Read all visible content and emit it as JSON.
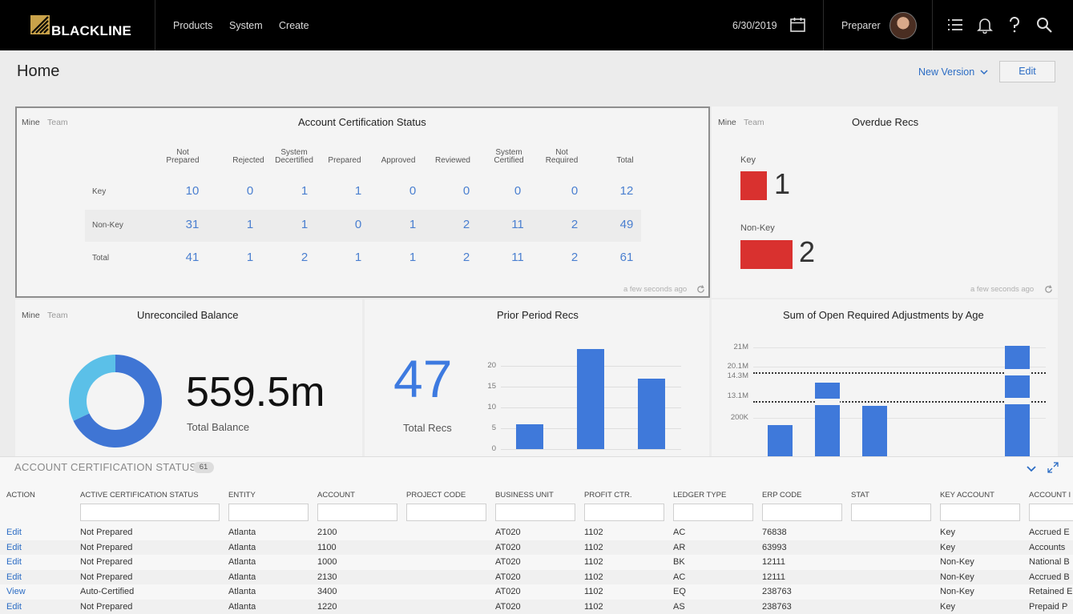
{
  "topbar": {
    "logo_text": "BLACKLINE",
    "nav": [
      "Products",
      "System",
      "Create"
    ],
    "date": "6/30/2019",
    "user_role": "Preparer"
  },
  "page": {
    "title": "Home",
    "new_version_label": "New Version",
    "edit_label": "Edit"
  },
  "toggle": {
    "mine": "Mine",
    "team": "Team"
  },
  "acs_card": {
    "title": "Account Certification Status",
    "columns": [
      [
        "Not",
        "Prepared"
      ],
      [
        "",
        "Rejected"
      ],
      [
        "System",
        "Decertified"
      ],
      [
        "",
        "Prepared"
      ],
      [
        "",
        "Approved"
      ],
      [
        "",
        "Reviewed"
      ],
      [
        "System",
        "Certified"
      ],
      [
        "Not",
        "Required"
      ],
      [
        "",
        "Total"
      ]
    ],
    "rows": [
      {
        "label": "Key",
        "values": [
          "10",
          "0",
          "1",
          "1",
          "0",
          "0",
          "0",
          "0",
          "12"
        ]
      },
      {
        "label": "Non-Key",
        "values": [
          "31",
          "1",
          "1",
          "0",
          "1",
          "2",
          "11",
          "2",
          "49"
        ]
      },
      {
        "label": "Total",
        "values": [
          "41",
          "1",
          "2",
          "1",
          "1",
          "2",
          "11",
          "2",
          "61"
        ]
      }
    ],
    "timestamp": "a few seconds ago"
  },
  "overdue_card": {
    "title": "Overdue Recs",
    "items": [
      {
        "label": "Key",
        "value": "1"
      },
      {
        "label": "Non-Key",
        "value": "2"
      }
    ],
    "timestamp": "a few seconds ago"
  },
  "unreconciled_card": {
    "title": "Unreconciled Balance",
    "value": "559.5m",
    "label": "Total Balance",
    "donut_fraction_dark": 0.68,
    "colors": {
      "dark": "#3f75d4",
      "light": "#5bc0e8"
    }
  },
  "prior_card": {
    "title": "Prior Period Recs",
    "value": "47",
    "label": "Total Recs"
  },
  "adjust_card": {
    "title": "Sum of Open Required Adjustments by Age",
    "y_ticks": [
      "21M",
      "20.1M",
      "14.3M",
      "13.1M",
      "200K"
    ]
  },
  "chart_data": [
    {
      "type": "bar",
      "title": "Prior Period Recs",
      "yticks": [
        0,
        5,
        10,
        15,
        20
      ],
      "ylim": [
        0,
        25
      ],
      "values": [
        6,
        24,
        17
      ]
    },
    {
      "type": "bar",
      "title": "Sum of Open Required Adjustments by Age",
      "values_visible_fraction": [
        0.28,
        0.67,
        0.46,
        1.0
      ],
      "reference_lines": [
        "14.3M",
        "13.1M"
      ]
    }
  ],
  "panel": {
    "title": "ACCOUNT CERTIFICATION STATUS",
    "count": "61",
    "headers": [
      "ACTION",
      "ACTIVE CERTIFICATION STATUS",
      "ENTITY",
      "ACCOUNT",
      "PROJECT CODE",
      "BUSINESS UNIT",
      "PROFIT CTR.",
      "LEDGER TYPE",
      "ERP CODE",
      "STAT",
      "KEY ACCOUNT",
      "ACCOUNT I"
    ],
    "rows": [
      [
        "Edit",
        "Not Prepared",
        "Atlanta",
        "2100",
        "",
        "AT020",
        "1102",
        "AC",
        "76838",
        "",
        "Key",
        "Accrued E"
      ],
      [
        "Edit",
        "Not Prepared",
        "Atlanta",
        "1100",
        "",
        "AT020",
        "1102",
        "AR",
        "63993",
        "",
        "Key",
        "Accounts"
      ],
      [
        "Edit",
        "Not Prepared",
        "Atlanta",
        "1000",
        "",
        "AT020",
        "1102",
        "BK",
        "12111",
        "",
        "Non-Key",
        "National B"
      ],
      [
        "Edit",
        "Not Prepared",
        "Atlanta",
        "2130",
        "",
        "AT020",
        "1102",
        "AC",
        "12111",
        "",
        "Non-Key",
        "Accrued B"
      ],
      [
        "View",
        "Auto-Certified",
        "Atlanta",
        "3400",
        "",
        "AT020",
        "1102",
        "EQ",
        "238763",
        "",
        "Non-Key",
        "Retained E"
      ],
      [
        "Edit",
        "Not Prepared",
        "Atlanta",
        "1220",
        "",
        "AT020",
        "1102",
        "AS",
        "238763",
        "",
        "Key",
        "Prepaid P"
      ]
    ]
  }
}
